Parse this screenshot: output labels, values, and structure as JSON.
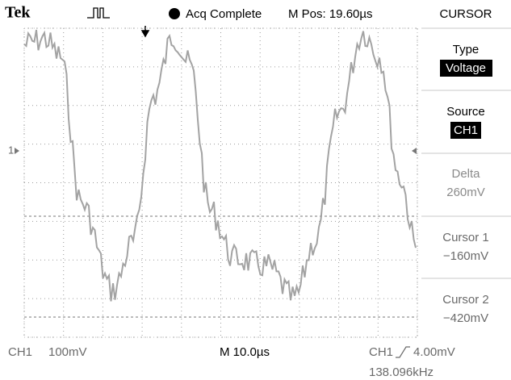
{
  "header": {
    "brand": "Tek",
    "status": "Acq Complete",
    "position": "M Pos: 19.60µs"
  },
  "menu": {
    "title": "CURSOR",
    "items": [
      {
        "label": "Type",
        "value": "Voltage"
      },
      {
        "label": "Source",
        "value": "CH1"
      },
      {
        "label": "Delta",
        "value": "260mV"
      },
      {
        "label": "Cursor 1",
        "value": "−160mV"
      },
      {
        "label": "Cursor 2",
        "value": "−420mV"
      }
    ]
  },
  "footer": {
    "channel": "CH1",
    "scale": "100mV",
    "timebase": "M 10.0µs",
    "trigger_source": "CH1",
    "trigger_level": "4.00mV",
    "frequency": "138.096kHz"
  },
  "markers": {
    "channel": "1"
  }
}
